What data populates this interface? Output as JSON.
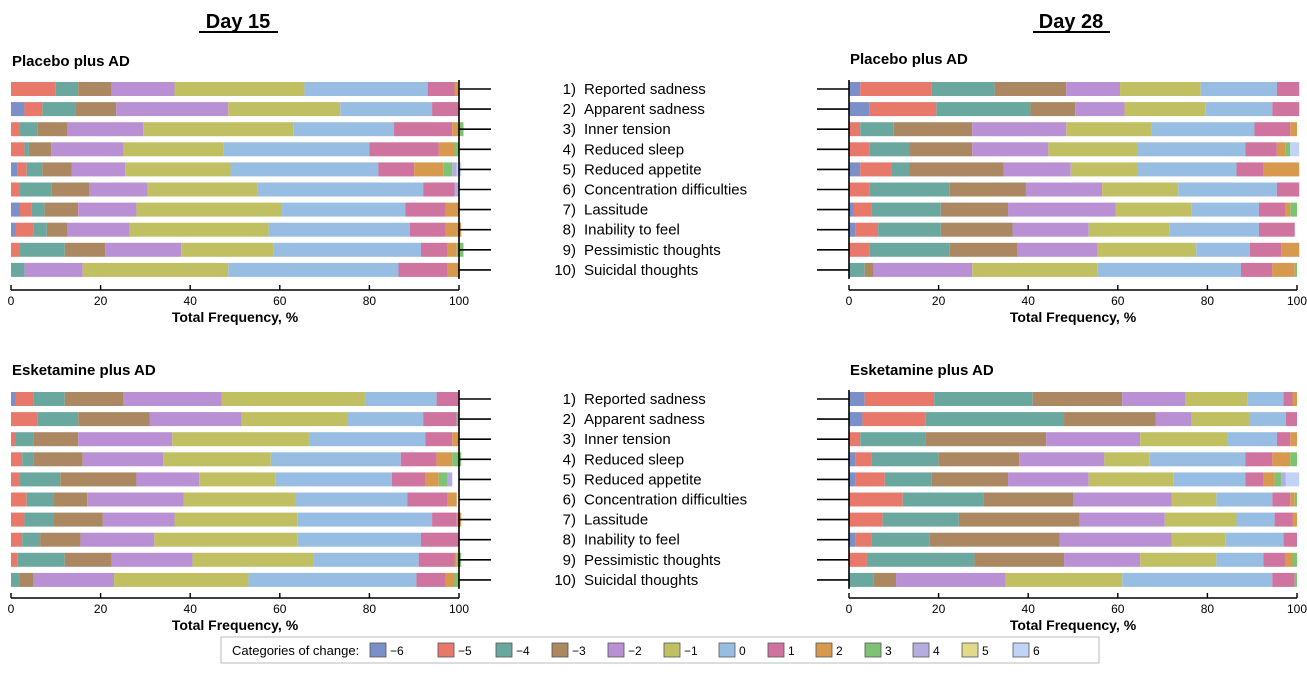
{
  "day_titles": [
    "Day 15",
    "Day 28"
  ],
  "items": [
    {
      "num": "1)",
      "label": "Reported sadness"
    },
    {
      "num": "2)",
      "label": "Apparent sadness"
    },
    {
      "num": "3)",
      "label": "Inner tension"
    },
    {
      "num": "4)",
      "label": "Reduced sleep"
    },
    {
      "num": "5)",
      "label": "Reduced appetite"
    },
    {
      "num": "6)",
      "label": "Concentration difficulties"
    },
    {
      "num": "7)",
      "label": "Lassitude"
    },
    {
      "num": "8)",
      "label": "Inability to feel"
    },
    {
      "num": "9)",
      "label": "Pessimistic thoughts"
    },
    {
      "num": "10)",
      "label": "Suicidal thoughts"
    }
  ],
  "legend": {
    "title": "Categories of change:",
    "categories": [
      "−6",
      "−5",
      "−4",
      "−3",
      "−2",
      "−1",
      "0",
      "1",
      "2",
      "3",
      "4",
      "5",
      "6"
    ],
    "colors": [
      "#7b8fc9",
      "#e8786a",
      "#6aa89f",
      "#ab8862",
      "#b990d3",
      "#c0c063",
      "#98bde3",
      "#cf739f",
      "#d6994e",
      "#7dc373",
      "#b5addf",
      "#e3d98a",
      "#c1d3f7"
    ]
  },
  "chart_data": [
    {
      "type": "bar",
      "orientation": "horizontal-stacked",
      "title": "Placebo plus AD",
      "day": "Day 15",
      "xlabel": "Total Frequency, %",
      "xlim": [
        0,
        100
      ],
      "xticks": [
        0,
        20,
        40,
        60,
        80,
        100
      ],
      "categories": [
        "Reported sadness",
        "Apparent sadness",
        "Inner tension",
        "Reduced sleep",
        "Reduced appetite",
        "Concentration difficulties",
        "Lassitude",
        "Inability to feel",
        "Pessimistic thoughts",
        "Suicidal thoughts"
      ],
      "values": [
        [
          0,
          10,
          5,
          7.5,
          14,
          29,
          27.5,
          6,
          1,
          0,
          0,
          0,
          0
        ],
        [
          3,
          4,
          7.5,
          9,
          25,
          25,
          20.5,
          6,
          0,
          0,
          0,
          0,
          0
        ],
        [
          0,
          2,
          4,
          6.5,
          17,
          33.5,
          22.5,
          13,
          1.5,
          1,
          0,
          0,
          0
        ],
        [
          0,
          3,
          1,
          5,
          16,
          22.5,
          32.5,
          15.5,
          3.5,
          1,
          0,
          0,
          0
        ],
        [
          1.5,
          2,
          3.5,
          6.5,
          12,
          23.5,
          33,
          8,
          6.5,
          2,
          1,
          0,
          1
        ],
        [
          0,
          2,
          7,
          8.5,
          13,
          24.5,
          37,
          7,
          0,
          0,
          1,
          0,
          0
        ],
        [
          2,
          2.5,
          3,
          7.5,
          13,
          32.5,
          27.5,
          9,
          3,
          0,
          0,
          0,
          0
        ],
        [
          1,
          4,
          3,
          4.5,
          14,
          31,
          31.5,
          8,
          3.5,
          0,
          0,
          0,
          0
        ],
        [
          0,
          2,
          10,
          9,
          17,
          20.5,
          33,
          6,
          2,
          1.5,
          0,
          0,
          0
        ],
        [
          0,
          0,
          3,
          0,
          13,
          32.5,
          38,
          11,
          2.5,
          0,
          0,
          0,
          0
        ]
      ]
    },
    {
      "type": "bar",
      "orientation": "horizontal-stacked",
      "title": "Placebo plus AD",
      "day": "Day 28",
      "xlabel": "Total Frequency, %",
      "xlim": [
        0,
        100
      ],
      "xticks": [
        0,
        20,
        40,
        60,
        80,
        100
      ],
      "categories": [
        "Reported sadness",
        "Apparent sadness",
        "Inner tension",
        "Reduced sleep",
        "Reduced appetite",
        "Concentration difficulties",
        "Lassitude",
        "Inability to feel",
        "Pessimistic thoughts",
        "Suicidal thoughts"
      ],
      "values": [
        [
          2.5,
          16,
          14,
          16,
          12,
          18,
          17,
          5,
          0,
          0,
          0,
          0,
          0
        ],
        [
          4.5,
          15,
          21,
          10,
          11,
          18,
          15,
          6,
          0,
          0,
          0,
          0,
          0
        ],
        [
          0,
          2.5,
          7.5,
          17.5,
          21,
          19,
          23,
          8,
          1.5,
          0,
          0,
          0,
          0
        ],
        [
          0,
          4.5,
          9,
          14,
          17,
          20,
          24,
          7,
          2,
          1,
          0,
          0,
          2
        ],
        [
          2.5,
          7,
          4,
          21,
          15,
          15,
          22,
          6,
          8,
          0,
          0,
          0,
          0
        ],
        [
          0,
          4.5,
          18,
          17,
          17,
          17,
          22,
          5,
          0,
          0,
          0,
          0,
          0
        ],
        [
          1,
          4,
          15.5,
          15,
          24,
          17,
          15,
          6,
          1,
          1.5,
          0,
          0,
          0
        ],
        [
          1.5,
          5,
          14,
          16,
          17,
          18,
          20,
          8,
          0,
          0,
          0,
          0,
          0
        ],
        [
          0,
          4.5,
          18,
          15,
          18,
          22,
          12,
          7,
          4,
          0,
          0,
          0,
          0
        ],
        [
          0,
          0,
          3.5,
          2,
          22,
          28,
          32,
          7,
          5,
          0.5,
          0,
          0,
          0
        ]
      ]
    },
    {
      "type": "bar",
      "orientation": "horizontal-stacked",
      "title": "Esketamine plus AD",
      "day": "Day 15",
      "xlabel": "Total Frequency, %",
      "xlim": [
        0,
        100
      ],
      "xticks": [
        0,
        20,
        40,
        60,
        80,
        100
      ],
      "categories": [
        "Reported sadness",
        "Apparent sadness",
        "Inner tension",
        "Reduced sleep",
        "Reduced appetite",
        "Concentration difficulties",
        "Lassitude",
        "Inability to feel",
        "Pessimistic thoughts",
        "Suicidal thoughts"
      ],
      "values": [
        [
          1,
          4,
          7,
          13,
          22,
          32,
          16,
          5,
          0,
          0,
          0,
          0,
          0
        ],
        [
          0,
          6,
          9,
          16,
          20.5,
          23.5,
          17,
          7.5,
          0,
          0.5,
          0,
          0,
          0
        ],
        [
          0,
          1,
          4,
          10,
          21,
          30.5,
          26,
          6,
          1.5,
          0,
          0,
          0,
          0
        ],
        [
          0,
          2.5,
          2.5,
          11,
          18,
          24,
          29,
          8,
          3.5,
          2,
          0,
          0,
          0
        ],
        [
          0,
          2,
          9,
          17,
          14,
          17,
          26,
          7.5,
          3,
          2,
          1,
          0,
          0
        ],
        [
          0,
          3.5,
          6,
          7.5,
          21.5,
          25,
          25,
          9,
          2,
          0,
          0,
          0,
          0
        ],
        [
          0,
          3,
          6.5,
          11,
          16,
          27.5,
          30,
          5.5,
          1,
          0,
          0,
          0,
          0
        ],
        [
          0,
          2.5,
          4,
          9,
          16.5,
          32,
          27.5,
          8.5,
          0,
          0,
          0,
          0,
          0
        ],
        [
          0,
          1.5,
          10.5,
          10.5,
          18,
          27,
          23.5,
          8,
          0.5,
          1,
          0,
          0,
          0
        ],
        [
          0,
          0,
          2,
          3,
          18,
          30,
          37.5,
          6.5,
          2,
          1,
          0,
          0,
          0
        ]
      ]
    },
    {
      "type": "bar",
      "orientation": "horizontal-stacked",
      "title": "Esketamine plus AD",
      "day": "Day 28",
      "xlabel": "Total Frequency, %",
      "xlim": [
        0,
        100
      ],
      "xticks": [
        0,
        20,
        40,
        60,
        80,
        100
      ],
      "categories": [
        "Reported sadness",
        "Apparent sadness",
        "Inner tension",
        "Reduced sleep",
        "Reduced appetite",
        "Concentration difficulties",
        "Lassitude",
        "Inability to feel",
        "Pessimistic thoughts",
        "Suicidal thoughts"
      ],
      "values": [
        [
          3.5,
          15.5,
          22,
          20,
          14,
          14,
          8,
          2,
          1,
          0,
          0,
          0,
          0
        ],
        [
          3,
          14,
          31,
          20.5,
          8,
          13,
          8,
          2.5,
          0,
          0,
          0,
          0,
          0
        ],
        [
          0,
          2.5,
          14.5,
          27,
          21,
          19.5,
          11,
          3,
          1.5,
          0,
          0,
          0,
          0
        ],
        [
          1.5,
          3.5,
          15,
          18,
          19,
          10,
          21.5,
          6,
          4,
          1.5,
          0,
          0,
          0
        ],
        [
          1.5,
          6.5,
          10.5,
          17,
          18,
          19,
          16,
          4,
          2.5,
          1.5,
          1,
          0,
          3
        ],
        [
          0,
          12,
          18,
          20,
          22,
          10,
          12.5,
          4,
          1,
          0.5,
          0,
          0,
          0
        ],
        [
          0,
          7.5,
          17,
          27,
          19,
          16,
          8.5,
          4,
          1,
          0,
          0,
          0,
          0
        ],
        [
          1.5,
          3.5,
          13,
          29,
          25,
          12,
          13,
          3,
          0,
          0,
          0,
          0,
          0
        ],
        [
          0,
          4,
          24,
          20,
          17,
          17,
          10.5,
          5,
          1.5,
          1,
          0,
          0,
          0
        ],
        [
          0,
          0,
          5.5,
          5,
          24.5,
          26,
          33.5,
          5,
          0,
          0.5,
          0,
          0,
          0
        ]
      ]
    }
  ]
}
